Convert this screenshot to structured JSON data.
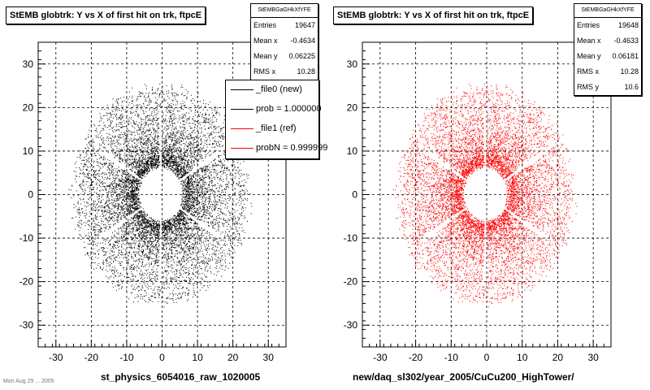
{
  "left_panel": {
    "title": "StEMB globtrk: Y vs X of first hit on trk, ftpcE",
    "stats": {
      "header": "StEMBGaGHkXfYFE",
      "rows": [
        {
          "label": "Entries",
          "value": "19647"
        },
        {
          "label": "Mean x",
          "value": "-0.4634"
        },
        {
          "label": "Mean y",
          "value": "0.06225"
        },
        {
          "label": "RMS x",
          "value": "10.28"
        }
      ]
    },
    "legend": [
      {
        "label": "_file0 (new)",
        "color": "#000000"
      },
      {
        "label": "prob = 1.000000",
        "color": "#000000"
      },
      {
        "label": "_file1 (ref)",
        "color": "#ff0000"
      },
      {
        "label": "probN = 0.999999",
        "color": "#ff0000"
      }
    ],
    "xaxis_title": "st_physics_6054016_raw_1020005"
  },
  "right_panel": {
    "title": "StEMB globtrk: Y vs X of first hit on trk, ftpcE",
    "stats": {
      "header": "StEMBGaGHkXfYFE",
      "rows": [
        {
          "label": "Entries",
          "value": "19648"
        },
        {
          "label": "Mean x",
          "value": "-0.4633"
        },
        {
          "label": "Mean y",
          "value": "0.06181"
        },
        {
          "label": "RMS x",
          "value": "10.28"
        },
        {
          "label": "RMS y",
          "value": "10.6"
        }
      ]
    },
    "xaxis_title": "new/daq_sl302/year_2005/CuCu200_HighTower/"
  },
  "footer_text": "Mon Aug 29 ... 2005",
  "chart_data": [
    {
      "type": "scatter",
      "title": "StEMB globtrk: Y vs X of first hit on trk, ftpcE",
      "xlabel": "st_physics_6054016_raw_1020005",
      "ylabel": "",
      "xlim": [
        -35,
        35
      ],
      "ylim": [
        -35,
        35
      ],
      "x_ticks": [
        -30,
        -20,
        -10,
        0,
        10,
        20,
        30
      ],
      "y_ticks": [
        -30,
        -20,
        -10,
        0,
        10,
        20,
        30
      ],
      "grid": true,
      "marker_color": "#000000",
      "distribution": {
        "shape": "annulus",
        "inner_radius": 7,
        "outer_radius": 25,
        "center": [
          -0.46,
          0.06
        ],
        "entries": 19647
      }
    },
    {
      "type": "scatter",
      "title": "StEMB globtrk: Y vs X of first hit on trk, ftpcE",
      "xlabel": "new/daq_sl302/year_2005/CuCu200_HighTower/",
      "ylabel": "",
      "xlim": [
        -35,
        35
      ],
      "ylim": [
        -35,
        35
      ],
      "x_ticks": [
        -30,
        -20,
        -10,
        0,
        10,
        20,
        30
      ],
      "y_ticks": [
        -30,
        -20,
        -10,
        0,
        10,
        20,
        30
      ],
      "grid": true,
      "marker_color": "#ff0000",
      "distribution": {
        "shape": "annulus",
        "inner_radius": 7,
        "outer_radius": 25,
        "center": [
          -0.46,
          0.06
        ],
        "entries": 19648
      }
    }
  ]
}
